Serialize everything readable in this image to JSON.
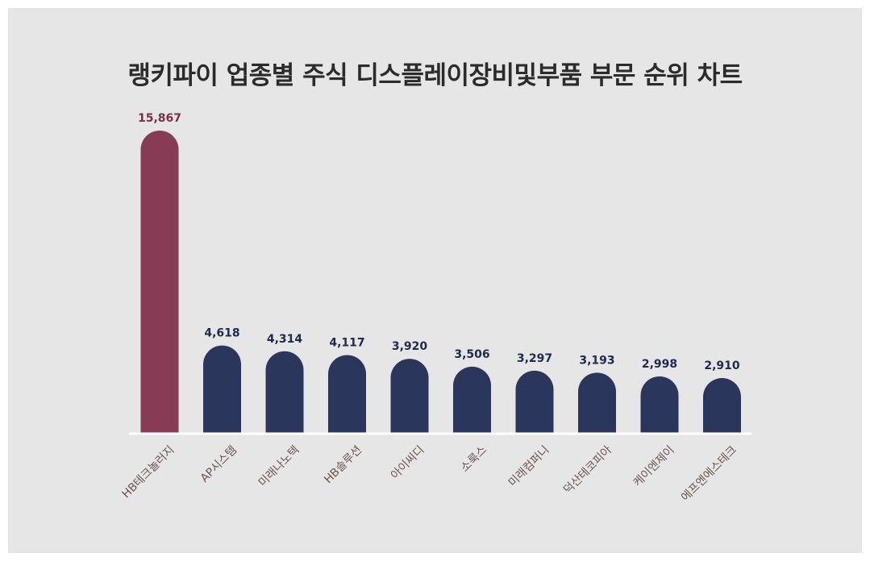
{
  "chart_data": {
    "type": "bar",
    "title": "랭키파이 업종별 주식 디스플레이장비및부품 부문 순위 차트",
    "categories": [
      "HB테크놀러지",
      "AP시스템",
      "미래나노텍",
      "HB솔루션",
      "아이씨디",
      "소룩스",
      "미래컴퍼니",
      "덕산테코피아",
      "케이엔제이",
      "에프엔에스테크"
    ],
    "values": [
      15867,
      4618,
      4314,
      4117,
      3920,
      3506,
      3297,
      3193,
      2998,
      2910
    ],
    "value_labels": [
      "15,867",
      "4,618",
      "4,314",
      "4,117",
      "3,920",
      "3,506",
      "3,297",
      "3,193",
      "2,998",
      "2,910"
    ],
    "highlight_index": 0,
    "xlabel": "",
    "ylabel": "",
    "ylim": [
      0,
      15867
    ],
    "grid": false,
    "colors": {
      "highlight_bar": "#873b55",
      "highlight_label": "#7a2e47",
      "bar": "#2b365c",
      "label": "#1f2a4e",
      "category_label": "#6b5650",
      "baseline": "#ffffff"
    }
  }
}
